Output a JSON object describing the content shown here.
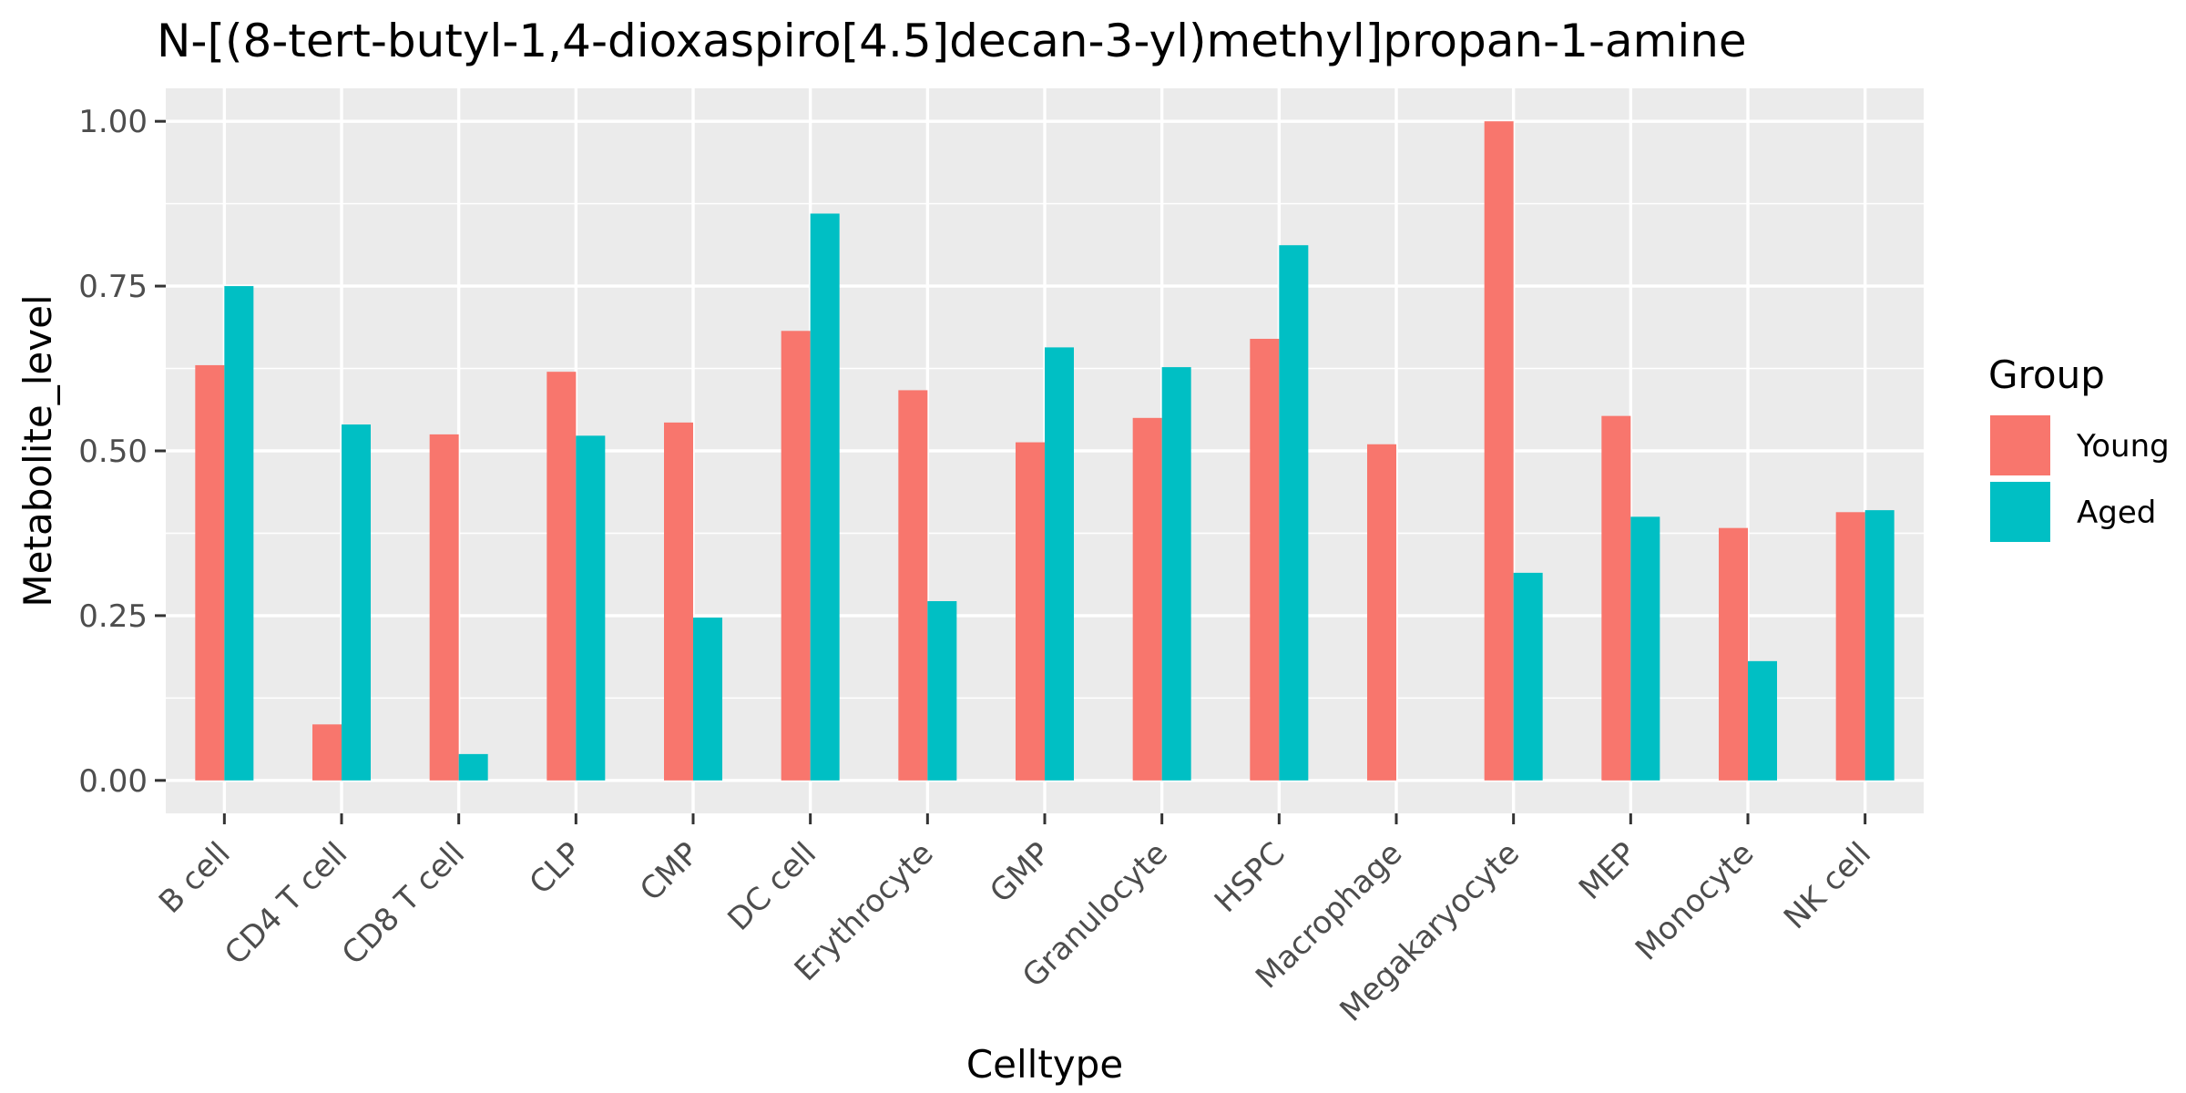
{
  "chart_data": {
    "type": "bar",
    "title": "N-[(8-tert-butyl-1,4-dioxaspiro[4.5]decan-3-yl)methyl]propan-1-amine",
    "xlabel": "Celltype",
    "ylabel": "Metabolite_level",
    "ylim": [
      -0.05,
      1.05
    ],
    "yticks": [
      0.0,
      0.25,
      0.5,
      0.75,
      1.0
    ],
    "ytick_labels": [
      "0.00",
      "0.25",
      "0.50",
      "0.75",
      "1.00"
    ],
    "grid": true,
    "legend": {
      "title": "Group",
      "position": "right"
    },
    "categories": [
      "B cell",
      "CD4 T cell",
      "CD8 T cell",
      "CLP",
      "CMP",
      "DC cell",
      "Erythrocyte",
      "GMP",
      "Granulocyte",
      "HSPC",
      "Macrophage",
      "Megakaryocyte",
      "MEP",
      "Monocyte",
      "NK cell"
    ],
    "series": [
      {
        "name": "Young",
        "color": "#F8766D",
        "values": [
          0.63,
          0.085,
          0.525,
          0.62,
          0.543,
          0.682,
          0.592,
          0.513,
          0.55,
          0.67,
          0.51,
          1.0,
          0.553,
          0.383,
          0.407
        ]
      },
      {
        "name": "Aged",
        "color": "#00BFC4",
        "values": [
          0.75,
          0.54,
          0.04,
          0.523,
          0.247,
          0.86,
          0.272,
          0.657,
          0.627,
          0.812,
          0.0,
          0.315,
          0.4,
          0.181,
          0.41
        ]
      }
    ]
  }
}
